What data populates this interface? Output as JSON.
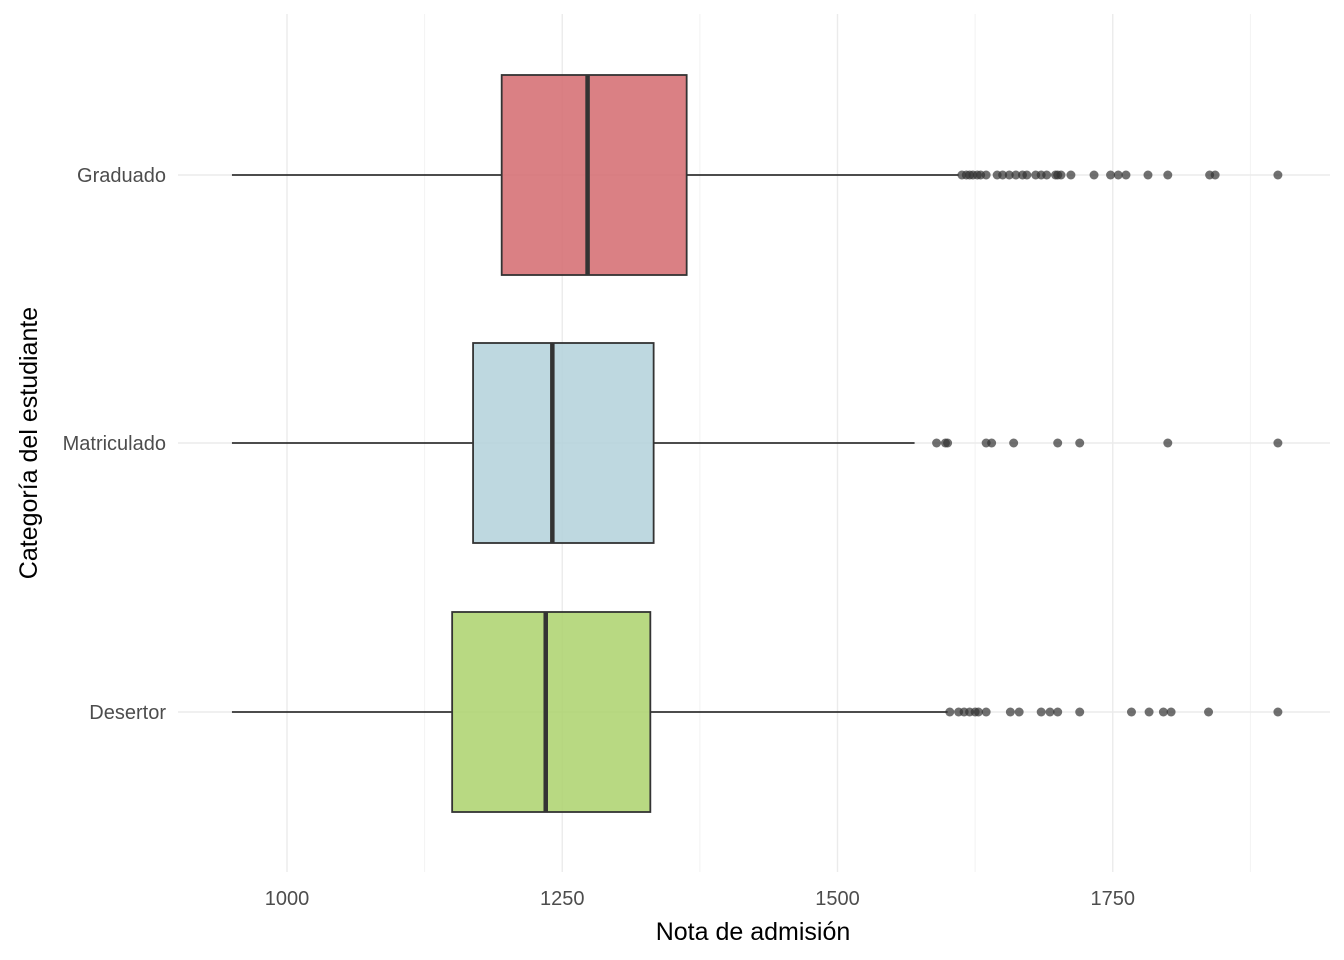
{
  "chart_data": {
    "type": "boxplot",
    "orientation": "horizontal",
    "xlabel": "Nota de admisión",
    "ylabel": "Categoría del estudiante",
    "xlim": [
      915,
      1945
    ],
    "xticks": [
      1000,
      1250,
      1500,
      1750
    ],
    "x_tick_labels": [
      "1000",
      "1250",
      "1500",
      "1750"
    ],
    "grid": true,
    "legend": "none",
    "categories": [
      "Graduado",
      "Matriculado",
      "Desertor"
    ],
    "series": [
      {
        "category": "Graduado",
        "color": "#d46a6e",
        "whisker_low": 950,
        "q1": 1195,
        "median": 1273,
        "q3": 1363,
        "whisker_high": 1610,
        "outliers": [
          1613,
          1617,
          1620,
          1623,
          1627,
          1630,
          1635,
          1645,
          1650,
          1656,
          1662,
          1668,
          1672,
          1680,
          1685,
          1690,
          1698,
          1700,
          1703,
          1712,
          1733,
          1748,
          1755,
          1762,
          1782,
          1800,
          1838,
          1843,
          1900
        ]
      },
      {
        "category": "Matriculado",
        "color": "#b3d1da",
        "whisker_low": 950,
        "q1": 1169,
        "median": 1241,
        "q3": 1333,
        "whisker_high": 1570,
        "outliers": [
          1590,
          1598,
          1600,
          1635,
          1640,
          1660,
          1700,
          1720,
          1800,
          1900
        ]
      },
      {
        "category": "Desertor",
        "color": "#acd26c",
        "whisker_low": 950,
        "q1": 1150,
        "median": 1235,
        "q3": 1330,
        "whisker_high": 1600,
        "outliers": [
          1602,
          1610,
          1615,
          1620,
          1625,
          1628,
          1635,
          1657,
          1665,
          1685,
          1693,
          1700,
          1720,
          1767,
          1783,
          1796,
          1803,
          1837,
          1900
        ]
      }
    ]
  }
}
